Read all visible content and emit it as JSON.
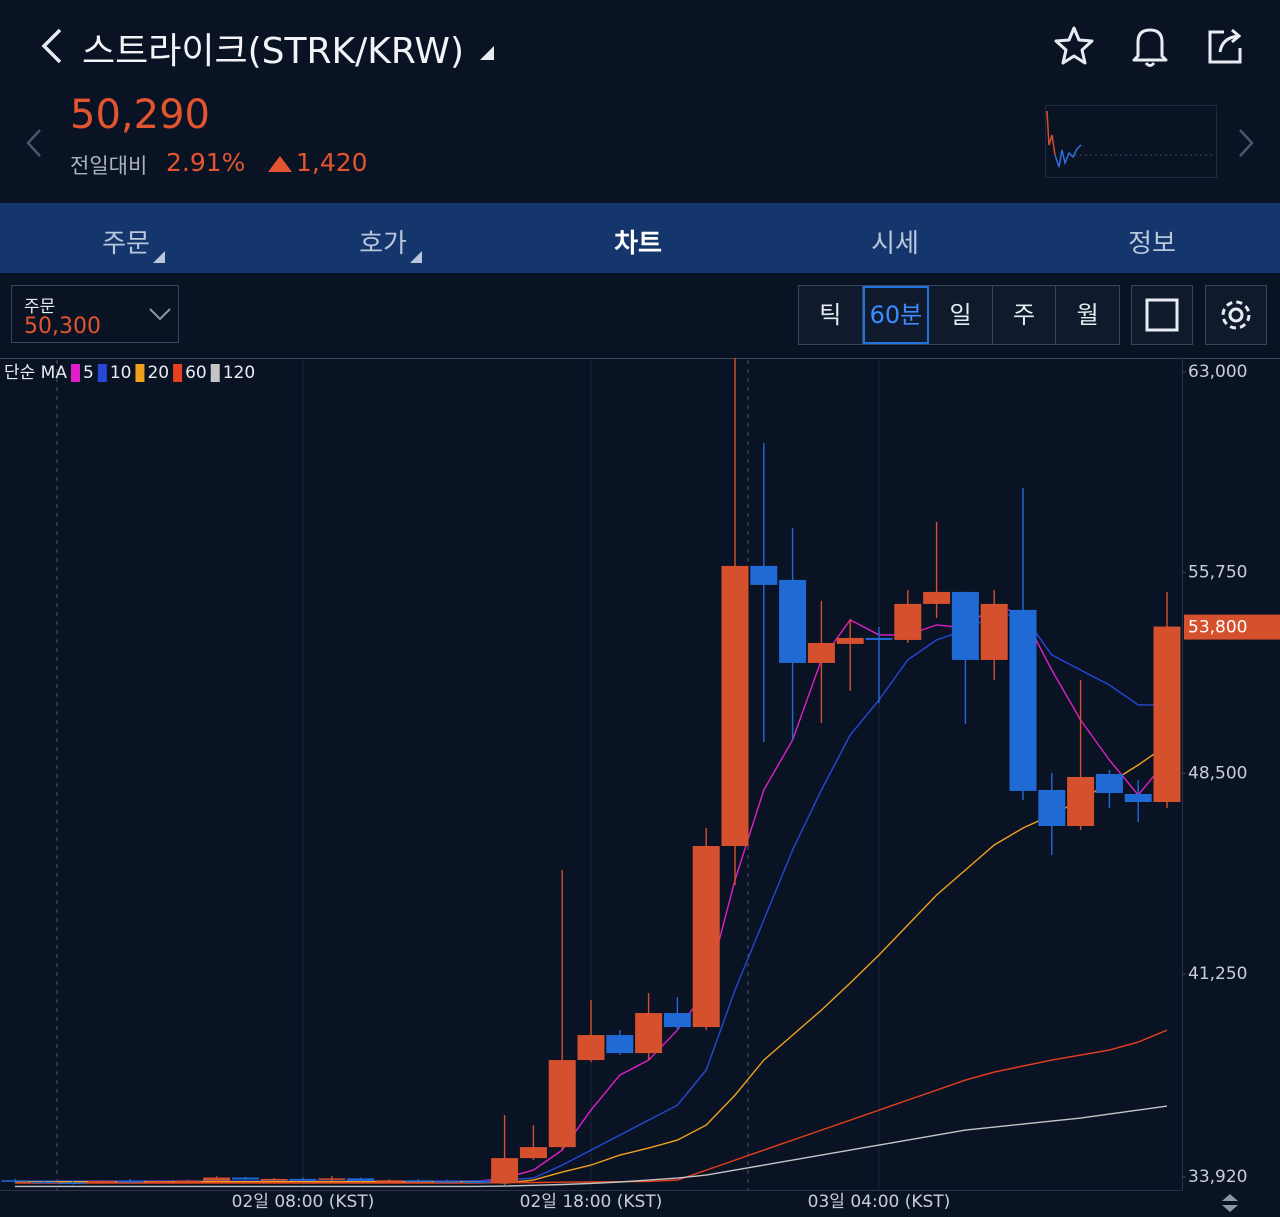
{
  "header": {
    "title": "스트라이크(STRK/KRW)",
    "price": "50,290",
    "change_label": "전일대비",
    "change_rate": "2.91%",
    "change_amount": "1,420"
  },
  "tabs": [
    "주문",
    "호가",
    "차트",
    "시세",
    "정보"
  ],
  "order_box": {
    "label": "주문",
    "price": "50,300"
  },
  "periods": [
    "틱",
    "60분",
    "일",
    "주",
    "월"
  ],
  "chart": {
    "type": "candlestick",
    "ma_label": "단순 MA",
    "categories": [
      null,
      null,
      null,
      null,
      null,
      null,
      null,
      null,
      null,
      null,
      "02일 08:00 (KST)",
      null,
      null,
      null,
      null,
      null,
      null,
      null,
      null,
      null,
      "02일 18:00 (KST)",
      null,
      null,
      null,
      null,
      null,
      null,
      null,
      null,
      null,
      "03일 04:00 (KST)",
      null,
      null,
      null,
      null,
      null,
      null,
      null,
      null,
      null,
      null
    ],
    "open": [
      33800,
      33750,
      33720,
      33700,
      33780,
      33740,
      33760,
      33790,
      33900,
      33830,
      33850,
      33820,
      33870,
      33790,
      33800,
      33770,
      33760,
      33698,
      34602,
      34999,
      38143,
      39046,
      38395,
      39841,
      39335,
      45874,
      55991,
      55485,
      52486,
      53173,
      53389,
      53317,
      54618,
      55051,
      52595,
      54401,
      47898,
      46597,
      48476,
      47753,
      47464
    ],
    "high": [
      33850,
      33800,
      33780,
      33800,
      33850,
      33800,
      33820,
      33950,
      33920,
      33880,
      33900,
      33950,
      33900,
      33830,
      33840,
      33820,
      33800,
      36155,
      35794,
      45007,
      40310,
      39227,
      40563,
      40419,
      46525,
      63500,
      60435,
      57364,
      54726,
      54076,
      53787,
      55124,
      57581,
      55051,
      55124,
      58809,
      48512,
      51872,
      48620,
      48259,
      55051
    ],
    "low": [
      33700,
      33680,
      33650,
      33680,
      33700,
      33700,
      33720,
      33760,
      33800,
      33780,
      33800,
      33780,
      33760,
      33740,
      33750,
      33720,
      33690,
      33626,
      34530,
      34890,
      38070,
      38324,
      38143,
      39227,
      39227,
      44465,
      49632,
      49704,
      50318,
      51474,
      51041,
      53209,
      54112,
      50282,
      51872,
      47536,
      45549,
      46452,
      47247,
      46742,
      47247
    ],
    "close": [
      33750,
      33720,
      33700,
      33780,
      33740,
      33760,
      33790,
      33900,
      33830,
      33850,
      33820,
      33870,
      33790,
      33800,
      33770,
      33760,
      33700,
      34602,
      34999,
      38143,
      39046,
      38395,
      39841,
      39335,
      45874,
      55991,
      55304,
      52486,
      53209,
      53389,
      53317,
      54618,
      55051,
      52595,
      54618,
      47862,
      46597,
      48367,
      47789,
      47464,
      53800
    ],
    "up_color": "#d5502d",
    "down_color": "#1f6ad4",
    "series": [
      {
        "name": "5",
        "color": "#e01fc8",
        "values": [
          33760,
          33760,
          33760,
          33760,
          33760,
          33760,
          33760,
          33760,
          33760,
          33760,
          33760,
          33760,
          33760,
          33760,
          33760,
          33760,
          33760,
          33879,
          34169,
          34891,
          36336,
          37601,
          38143,
          39227,
          40671,
          44646,
          47898,
          49704,
          52595,
          54040,
          53498,
          53498,
          53859,
          53751,
          54582,
          54221,
          52233,
          50427,
          48982,
          47717,
          48982
        ]
      },
      {
        "name": "10",
        "color": "#2747d8",
        "values": [
          33770,
          33770,
          33770,
          33770,
          33770,
          33770,
          33770,
          33770,
          33770,
          33770,
          33770,
          33770,
          33770,
          33770,
          33770,
          33770,
          33770,
          33807,
          33879,
          34349,
          34891,
          35433,
          35975,
          36517,
          37781,
          40671,
          43201,
          45730,
          47898,
          49885,
          51149,
          52595,
          53317,
          53679,
          54221,
          54221,
          52775,
          52233,
          51691,
          50969,
          50969
        ]
      },
      {
        "name": "20",
        "color": "#f0a11c",
        "values": [
          33750,
          33750,
          33750,
          33750,
          33750,
          33750,
          33750,
          33750,
          33750,
          33750,
          33750,
          33750,
          33750,
          33750,
          33750,
          33750,
          33750,
          33698,
          33807,
          34096,
          34349,
          34710,
          34963,
          35252,
          35794,
          36878,
          38143,
          39046,
          39949,
          40925,
          41936,
          43020,
          44104,
          45007,
          45911,
          46525,
          46995,
          47536,
          48151,
          48801,
          49524
        ]
      },
      {
        "name": "60",
        "color": "#e8401e",
        "values": [
          33700,
          33700,
          33700,
          33700,
          33700,
          33700,
          33700,
          33700,
          33700,
          33700,
          33700,
          33700,
          33700,
          33700,
          33700,
          33700,
          33700,
          33720,
          33720,
          33730,
          33740,
          33750,
          33760,
          33807,
          34169,
          34530,
          34891,
          35252,
          35614,
          35975,
          36336,
          36697,
          37058,
          37420,
          37709,
          37926,
          38143,
          38324,
          38504,
          38793,
          39227
        ]
      },
      {
        "name": "120",
        "color": "#c4c4c4",
        "values": [
          33580,
          33580,
          33580,
          33580,
          33580,
          33580,
          33580,
          33580,
          33580,
          33580,
          33580,
          33580,
          33580,
          33580,
          33580,
          33580,
          33580,
          33590,
          33620,
          33650,
          33690,
          33740,
          33807,
          33879,
          33987,
          34169,
          34349,
          34530,
          34710,
          34891,
          35071,
          35252,
          35433,
          35614,
          35722,
          35830,
          35939,
          36047,
          36192,
          36336,
          36481
        ]
      }
    ],
    "ylim": [
      33450,
      63500
    ],
    "yticks": [
      {
        "value": 63000,
        "label": "63,000"
      },
      {
        "value": 55750,
        "label": "55,750"
      },
      {
        "value": 48500,
        "label": "48,500"
      },
      {
        "value": 41250,
        "label": "41,250"
      },
      {
        "value": 33920,
        "label": "33,920"
      }
    ],
    "last_price": {
      "value": 53800,
      "label": "53,800"
    }
  }
}
